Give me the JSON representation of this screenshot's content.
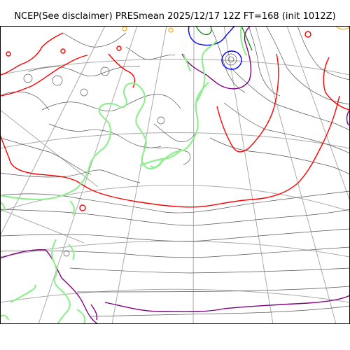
{
  "map": {
    "title": "NCEP(See disclaimer) PRESmean 2025/12/17 12Z FT=168 (init 1012Z)",
    "background_color": "#ffffff",
    "frame_color": "#000000",
    "graticule_color": "#aaaaaa",
    "coastline_color": "#90ee90",
    "contour_colors": {
      "standard": "#555555",
      "highlight_red": "#ff0000",
      "highlight_purple": "#800080",
      "highlight_blue": "#0000ff",
      "highlight_green": "#008000",
      "highlight_orange": "#ffa500"
    }
  }
}
